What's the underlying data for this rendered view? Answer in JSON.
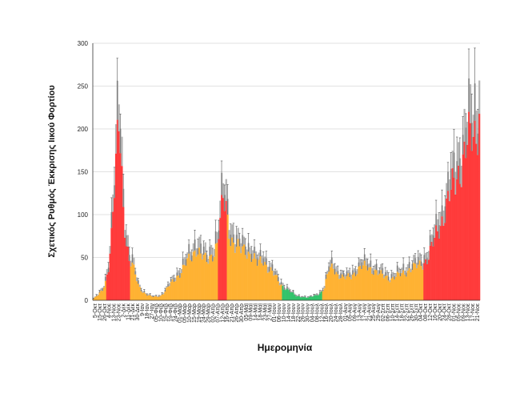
{
  "chart_data": {
    "type": "bar",
    "title": "",
    "xlabel": "Ημερομηνία",
    "ylabel": "Σχετικός Ρυθμός Έκκρισης Ιικού Φορτίου",
    "ylim": [
      0,
      300
    ],
    "yticks": [
      0,
      50,
      100,
      150,
      200,
      250,
      300
    ],
    "grid": true,
    "legend": "none",
    "colors": {
      "orange": "#FFB233",
      "red": "#FF3B3B",
      "green": "#33C36B",
      "gray": "#B3B3B3",
      "error": "#555555",
      "grid": "#D9D9D9"
    },
    "series": [
      {
        "name": "",
        "anchors": [
          [
            0,
            2,
            "orange"
          ],
          [
            3,
            6,
            "orange"
          ],
          [
            6,
            12,
            "orange"
          ],
          [
            8,
            22,
            "orange"
          ],
          [
            10,
            40,
            "red"
          ],
          [
            12,
            75,
            "red"
          ],
          [
            14,
            125,
            "red"
          ],
          [
            16,
            180,
            "red"
          ],
          [
            17,
            205,
            "red"
          ],
          [
            18,
            190,
            "red"
          ],
          [
            19,
            150,
            "red"
          ],
          [
            20,
            110,
            "red"
          ],
          [
            22,
            70,
            "red"
          ],
          [
            24,
            45,
            "red"
          ],
          [
            26,
            40,
            "orange"
          ],
          [
            28,
            30,
            "orange"
          ],
          [
            30,
            18,
            "orange"
          ],
          [
            33,
            10,
            "orange"
          ],
          [
            36,
            6,
            "orange"
          ],
          [
            40,
            4,
            "orange"
          ],
          [
            45,
            5,
            "orange"
          ],
          [
            48,
            10,
            "orange"
          ],
          [
            50,
            15,
            "orange"
          ],
          [
            53,
            22,
            "orange"
          ],
          [
            56,
            28,
            "orange"
          ],
          [
            59,
            33,
            "orange"
          ],
          [
            62,
            42,
            "orange"
          ],
          [
            66,
            52,
            "orange"
          ],
          [
            69,
            62,
            "orange"
          ],
          [
            72,
            52,
            "orange"
          ],
          [
            76,
            45,
            "orange"
          ],
          [
            80,
            55,
            "orange"
          ],
          [
            83,
            65,
            "orange"
          ],
          [
            85,
            90,
            "red"
          ],
          [
            87,
            115,
            "red"
          ],
          [
            89,
            110,
            "red"
          ],
          [
            90,
            95,
            "orange"
          ],
          [
            92,
            75,
            "orange"
          ],
          [
            95,
            62,
            "orange"
          ],
          [
            99,
            58,
            "orange"
          ],
          [
            102,
            60,
            "orange"
          ],
          [
            106,
            52,
            "orange"
          ],
          [
            110,
            42,
            "orange"
          ],
          [
            114,
            48,
            "orange"
          ],
          [
            117,
            38,
            "orange"
          ],
          [
            121,
            30,
            "orange"
          ],
          [
            125,
            20,
            "orange"
          ],
          [
            128,
            15,
            "green"
          ],
          [
            132,
            10,
            "green"
          ],
          [
            136,
            5,
            "green"
          ],
          [
            140,
            4,
            "green"
          ],
          [
            144,
            3,
            "green"
          ],
          [
            148,
            5,
            "green"
          ],
          [
            152,
            8,
            "green"
          ],
          [
            155,
            14,
            "orange"
          ],
          [
            158,
            35,
            "orange"
          ],
          [
            161,
            40,
            "orange"
          ],
          [
            164,
            30,
            "orange"
          ],
          [
            168,
            25,
            "orange"
          ],
          [
            172,
            28,
            "orange"
          ],
          [
            176,
            33,
            "orange"
          ],
          [
            180,
            38,
            "orange"
          ],
          [
            184,
            40,
            "orange"
          ],
          [
            188,
            35,
            "orange"
          ],
          [
            192,
            30,
            "orange"
          ],
          [
            196,
            28,
            "orange"
          ],
          [
            200,
            25,
            "orange"
          ],
          [
            204,
            28,
            "orange"
          ],
          [
            208,
            32,
            "orange"
          ],
          [
            212,
            36,
            "orange"
          ],
          [
            216,
            38,
            "orange"
          ],
          [
            220,
            42,
            "orange"
          ],
          [
            224,
            48,
            "red"
          ],
          [
            228,
            65,
            "red"
          ],
          [
            232,
            85,
            "red"
          ],
          [
            236,
            105,
            "red"
          ],
          [
            240,
            125,
            "red"
          ],
          [
            244,
            145,
            "red"
          ],
          [
            248,
            165,
            "red"
          ],
          [
            252,
            185,
            "red"
          ],
          [
            256,
            195,
            "red"
          ],
          [
            258,
            210,
            "red"
          ],
          [
            259,
            220,
            "red"
          ]
        ]
      }
    ],
    "x_tick_labels": [
      "5-Οκτ",
      "15-Οκτ",
      "26-Οκτ",
      "4-Νοε",
      "13-Νοε",
      "23-Νοε",
      "2-Δεκ",
      "11-Δεκ",
      "21-Δεκ",
      "30-Δεκ",
      "9-Ιαν",
      "18-Ιαν",
      "27-Ιαν",
      "05-Φεβ",
      "10-Φεβ",
      "15-Φεβ",
      "19-Φεβ",
      "24-Φεβ",
      "01-Μαρ",
      "05-Μαρ",
      "10-Μαρ",
      "15-Μαρ",
      "19-Μαρ",
      "24-Μαρ",
      "29-Μαρ",
      "02-Απρ",
      "07-Απρ",
      "12-Απρ",
      "16-Απρ",
      "21-Απρ",
      "26-Απρ",
      "30-Απρ",
      "05-Μαϊ",
      "09-Μαϊ",
      "14-Μαϊ",
      "18-Μαϊ",
      "23-Μαϊ",
      "27-Μαϊ",
      "01-Ιουν",
      "06-Ιουν",
      "10-Ιουν",
      "14-Ιουν",
      "18-Ιουν",
      "22-Ιουν",
      "26-Ιουν",
      "30-Ιουν",
      "04-Ιουλ",
      "08-Ιουλ",
      "12-Ιουλ",
      "16-Ιουλ",
      "20-Ιουλ",
      "24-Ιουλ",
      "28-Ιουλ",
      "01-Αυγ",
      "05-Αυγ",
      "09-Αυγ",
      "13-Αυγ",
      "17-Αυγ",
      "21-Αυγ",
      "25-Αυγ",
      "29-Αυγ",
      "02-Σεπ",
      "06-Σεπ",
      "10-Σεπ",
      "14-Σεπ",
      "18-Σεπ",
      "22-Σεπ",
      "26-Σεπ",
      "30-Σεπ",
      "04-Οκτ",
      "08-Οκτ",
      "12-Οκτ",
      "16-Οκτ",
      "20-Οκτ",
      "24-Οκτ",
      "28-Οκτ",
      "01-Νοε",
      "05-Νοε",
      "09-Νοε",
      "13-Νοε",
      "17-Νοε",
      "21-Νοε"
    ]
  }
}
